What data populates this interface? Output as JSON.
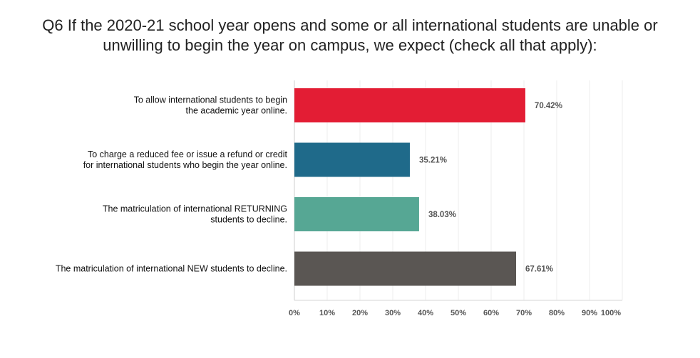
{
  "title_lines": [
    "Q6 If the 2020-21 school year opens and some or all international students are unable or",
    "unwilling to begin the year on campus, we expect (check all that apply):"
  ],
  "chart_data": {
    "type": "bar",
    "orientation": "horizontal",
    "categories": [
      [
        "To allow international students to begin",
        "the academic year online."
      ],
      [
        "To charge a reduced fee or issue a refund or credit",
        "for international students who begin the year online."
      ],
      [
        "The matriculation of international RETURNING",
        "students to decline."
      ],
      [
        "The matriculation of international NEW students to decline."
      ]
    ],
    "values": [
      70.42,
      35.21,
      38.03,
      67.61
    ],
    "value_labels": [
      "70.42%",
      "35.21%",
      "38.03%",
      "67.61%"
    ],
    "colors": [
      "#e31d34",
      "#1f6a8a",
      "#56a794",
      "#5a5653"
    ],
    "xlim": [
      0,
      100
    ],
    "x_ticks": [
      "0%",
      "10%",
      "20%",
      "30%",
      "40%",
      "50%",
      "60%",
      "70%",
      "80%",
      "90%",
      "100%"
    ],
    "grid": true,
    "legend": "none"
  }
}
